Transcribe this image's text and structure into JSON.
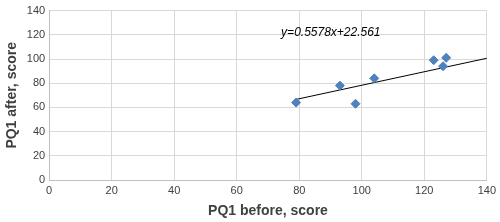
{
  "chart_data": {
    "type": "scatter",
    "x_label": "PQ1 before, score",
    "y_label": "PQ1 after, score",
    "annotation": "y=0.5578x+22.561",
    "series": [
      {
        "type": "scatter",
        "color": "#4f81bd",
        "marker": "diamond",
        "x": [
          79,
          93,
          98,
          104,
          123,
          126,
          127
        ],
        "values": [
          64,
          78,
          63,
          84,
          99,
          94,
          101
        ]
      },
      {
        "type": "line",
        "color": "#000000",
        "line_style": "solid",
        "x": [
          79,
          140
        ],
        "values": [
          66.6,
          100.6
        ]
      }
    ],
    "xlim": [
      0,
      140
    ],
    "xticks": [
      0,
      20,
      40,
      60,
      80,
      100,
      120,
      140
    ],
    "ylim": [
      0,
      140
    ],
    "yticks": [
      0,
      20,
      40,
      60,
      80,
      100,
      120,
      140
    ],
    "grid": true
  }
}
